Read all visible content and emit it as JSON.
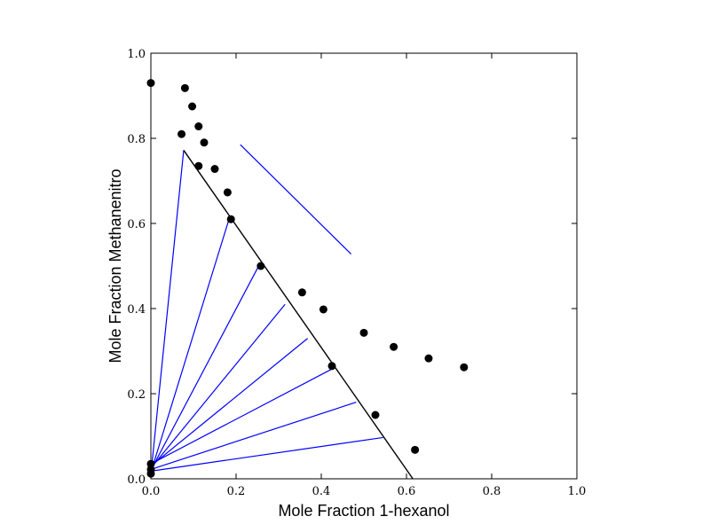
{
  "chart_data": {
    "type": "scatter",
    "title": "",
    "xlabel": "Mole Fraction 1-hexanol",
    "ylabel": "Mole Fraction Methanenitro",
    "xlim": [
      0,
      1
    ],
    "ylim": [
      0,
      1
    ],
    "grid": false,
    "x_ticks": [
      "0.0",
      "0.2",
      "0.4",
      "0.6",
      "0.8",
      "1.0"
    ],
    "y_ticks": [
      "0.0",
      "0.2",
      "0.4",
      "0.6",
      "0.8",
      "1.0"
    ],
    "points": [
      {
        "x": 0.0,
        "y": 0.93
      },
      {
        "x": 0.08,
        "y": 0.918
      },
      {
        "x": 0.097,
        "y": 0.875
      },
      {
        "x": 0.072,
        "y": 0.81
      },
      {
        "x": 0.112,
        "y": 0.828
      },
      {
        "x": 0.125,
        "y": 0.79
      },
      {
        "x": 0.112,
        "y": 0.735
      },
      {
        "x": 0.15,
        "y": 0.728
      },
      {
        "x": 0.18,
        "y": 0.673
      },
      {
        "x": 0.188,
        "y": 0.61
      },
      {
        "x": 0.258,
        "y": 0.5
      },
      {
        "x": 0.355,
        "y": 0.438
      },
      {
        "x": 0.405,
        "y": 0.398
      },
      {
        "x": 0.5,
        "y": 0.343
      },
      {
        "x": 0.57,
        "y": 0.31
      },
      {
        "x": 0.652,
        "y": 0.283
      },
      {
        "x": 0.735,
        "y": 0.262
      },
      {
        "x": 0.425,
        "y": 0.265
      },
      {
        "x": 0.527,
        "y": 0.15
      },
      {
        "x": 0.62,
        "y": 0.068
      },
      {
        "x": 0.0,
        "y": 0.035
      },
      {
        "x": 0.0,
        "y": 0.022
      },
      {
        "x": 0.0,
        "y": 0.012
      }
    ],
    "binodal_line": [
      [
        0.077,
        0.772
      ],
      [
        0.615,
        0.0
      ]
    ],
    "reference_line": [
      [
        0.21,
        0.785
      ],
      [
        0.47,
        0.528
      ]
    ],
    "tie_lines": [
      {
        "start": [
          0.0,
          0.01
        ],
        "end": [
          0.077,
          0.772
        ]
      },
      {
        "start": [
          0.0,
          0.015
        ],
        "end": [
          0.185,
          0.615
        ]
      },
      {
        "start": [
          0.0,
          0.02
        ],
        "end": [
          0.252,
          0.498
        ]
      },
      {
        "start": [
          0.0,
          0.025
        ],
        "end": [
          0.315,
          0.41
        ]
      },
      {
        "start": [
          0.0,
          0.03
        ],
        "end": [
          0.368,
          0.33
        ]
      },
      {
        "start": [
          0.0,
          0.035
        ],
        "end": [
          0.425,
          0.258
        ]
      },
      {
        "start": [
          0.0,
          0.022
        ],
        "end": [
          0.482,
          0.18
        ]
      },
      {
        "start": [
          0.0,
          0.018
        ],
        "end": [
          0.545,
          0.097
        ]
      }
    ],
    "colors": {
      "points": "#000000",
      "binodal_line": "#000000",
      "tie_lines": "#0000ff",
      "reference_line": "#0000ff"
    }
  }
}
